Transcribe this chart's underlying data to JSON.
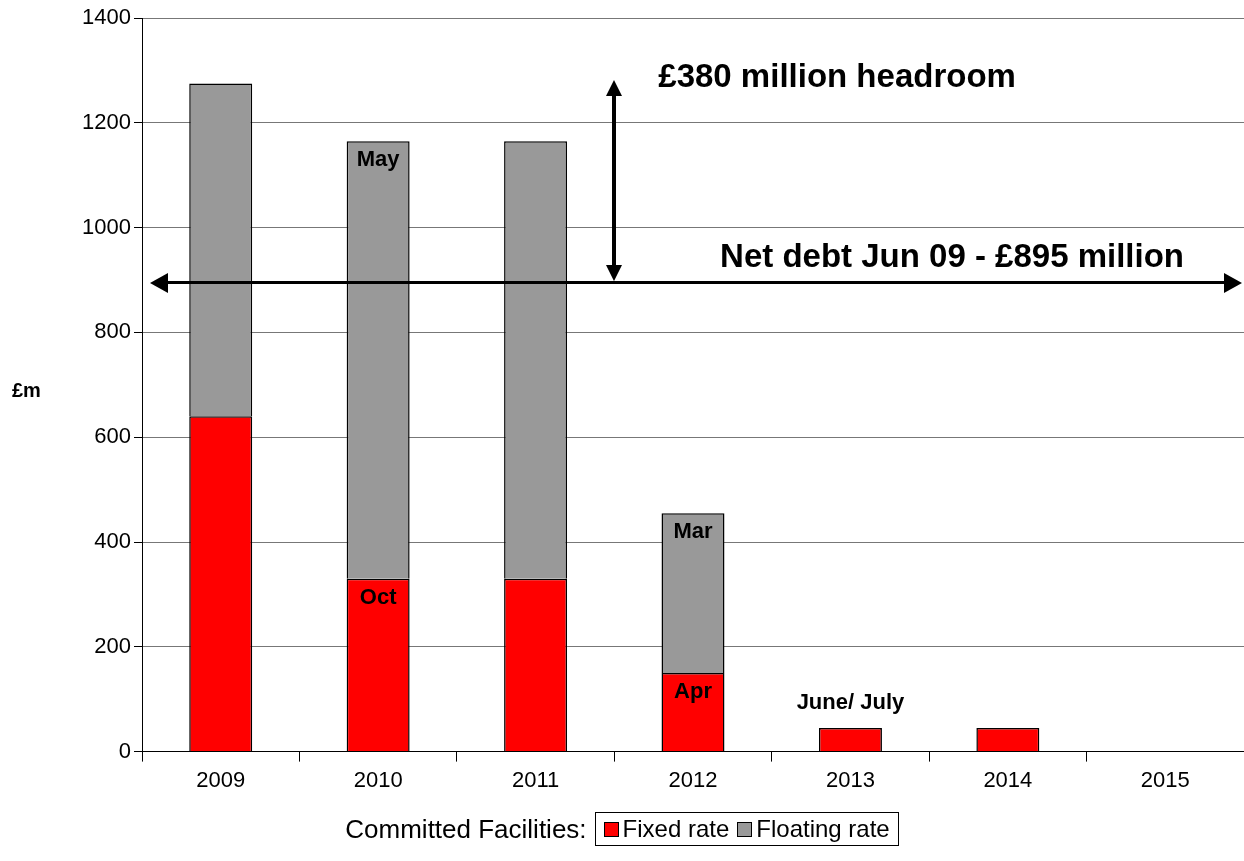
{
  "chart_data": {
    "type": "bar",
    "stacked": true,
    "categories": [
      "2009",
      "2010",
      "2011",
      "2012",
      "2013",
      "2014",
      "2015"
    ],
    "series": [
      {
        "name": "Fixed rate",
        "color": "#ff0000",
        "values": [
          640,
          330,
          330,
          150,
          45,
          45,
          null
        ]
      },
      {
        "name": "Floating rate",
        "color": "#999999",
        "values": [
          635,
          835,
          835,
          305,
          null,
          null,
          null
        ]
      }
    ],
    "ylabel": "£m",
    "ylim": [
      0,
      1400
    ],
    "yticks": [
      0,
      200,
      400,
      600,
      800,
      1000,
      1200,
      1400
    ],
    "grid": "y",
    "legend": "bottom",
    "legend_title": "Committed Facilities:",
    "ref_lines": [
      {
        "axis": "y",
        "value": 895,
        "label": "Net debt Jun 09 - £895 million",
        "color": "#000000"
      }
    ],
    "annotations": [
      "£380 million headroom",
      {
        "text": "May",
        "x": "2010",
        "y": 1165
      },
      {
        "text": "Oct",
        "x": "2010",
        "y": 330
      },
      {
        "text": "Mar",
        "x": "2012",
        "y": 455
      },
      {
        "text": "Apr",
        "x": "2012",
        "y": 150
      },
      {
        "text": "June/ July",
        "x": "2013",
        "y": 45
      }
    ]
  }
}
